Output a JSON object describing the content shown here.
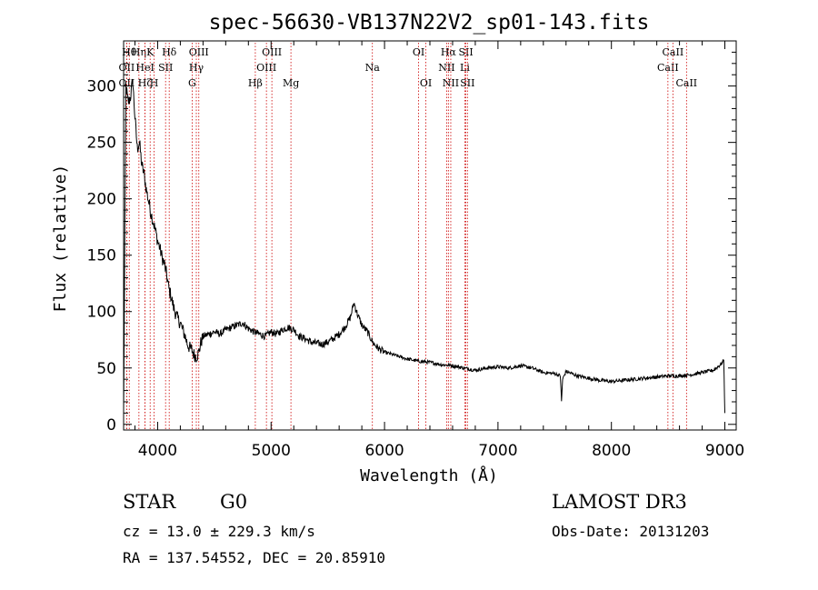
{
  "chart_data": {
    "type": "line",
    "title": "spec-56630-VB137N22V2_sp01-143.fits",
    "xlabel": "Wavelength (Å)",
    "ylabel": "Flux (relative)",
    "xlim": [
      3700,
      9100
    ],
    "ylim": [
      -5,
      340
    ],
    "xticks": [
      4000,
      5000,
      6000,
      7000,
      8000,
      9000
    ],
    "yticks": [
      0,
      50,
      100,
      150,
      200,
      250,
      300
    ],
    "series": [
      {
        "name": "flux",
        "x": [
          3700,
          3720,
          3740,
          3760,
          3780,
          3800,
          3820,
          3840,
          3860,
          3880,
          3900,
          3920,
          3940,
          3960,
          3980,
          4000,
          4020,
          4040,
          4060,
          4080,
          4100,
          4120,
          4140,
          4160,
          4180,
          4200,
          4220,
          4240,
          4260,
          4280,
          4300,
          4320,
          4340,
          4360,
          4380,
          4400,
          4450,
          4500,
          4550,
          4600,
          4650,
          4700,
          4750,
          4800,
          4850,
          4900,
          4950,
          5000,
          5050,
          5100,
          5150,
          5200,
          5250,
          5300,
          5350,
          5400,
          5450,
          5500,
          5550,
          5600,
          5650,
          5700,
          5730,
          5760,
          5800,
          5850,
          5900,
          5950,
          6000,
          6100,
          6200,
          6300,
          6400,
          6500,
          6600,
          6700,
          6800,
          6850,
          6900,
          7000,
          7100,
          7150,
          7200,
          7300,
          7400,
          7500,
          7550,
          7560,
          7570,
          7600,
          7700,
          7800,
          7900,
          8000,
          8100,
          8200,
          8300,
          8400,
          8500,
          8600,
          8700,
          8800,
          8900,
          8950,
          8980,
          8990,
          9000
        ],
        "values": [
          10,
          300,
          285,
          290,
          305,
          272,
          245,
          250,
          230,
          222,
          208,
          198,
          188,
          180,
          172,
          163,
          156,
          148,
          142,
          132,
          120,
          113,
          104,
          98,
          93,
          90,
          84,
          79,
          72,
          68,
          66,
          62,
          60,
          63,
          72,
          78,
          80,
          82,
          80,
          84,
          86,
          88,
          90,
          85,
          82,
          80,
          78,
          82,
          80,
          84,
          86,
          84,
          78,
          76,
          73,
          72,
          71,
          73,
          76,
          80,
          86,
          95,
          108,
          98,
          88,
          82,
          72,
          67,
          64,
          61,
          58,
          56,
          55,
          53,
          52,
          50,
          48,
          49,
          50,
          51,
          50,
          51,
          52,
          50,
          46,
          45,
          43,
          20,
          40,
          47,
          43,
          41,
          39,
          38,
          39,
          40,
          41,
          42,
          43,
          43,
          44,
          46,
          48,
          52,
          55,
          58,
          10
        ]
      }
    ],
    "lines": [
      {
        "label": "OII",
        "x": 3727,
        "row": 2
      },
      {
        "label": "Hθ",
        "x": 3750,
        "row": 0
      },
      {
        "label": "OII",
        "x": 3727,
        "row": 1
      },
      {
        "label": "Hη",
        "x": 3835,
        "row": 0
      },
      {
        "label": "HeI",
        "x": 3889,
        "row": 1
      },
      {
        "label": "Hζ",
        "x": 3889,
        "row": 2
      },
      {
        "label": "K",
        "x": 3934,
        "row": 0
      },
      {
        "label": "H",
        "x": 3969,
        "row": 2
      },
      {
        "label": "SII",
        "x": 4070,
        "row": 1
      },
      {
        "label": "Hδ",
        "x": 4102,
        "row": 0
      },
      {
        "label": "G",
        "x": 4304,
        "row": 2
      },
      {
        "label": "Hγ",
        "x": 4341,
        "row": 1
      },
      {
        "label": "OIII",
        "x": 4363,
        "row": 0
      },
      {
        "label": "Hβ",
        "x": 4861,
        "row": 2
      },
      {
        "label": "OIII",
        "x": 4959,
        "row": 1
      },
      {
        "label": "OIII",
        "x": 5007,
        "row": 0
      },
      {
        "label": "Mg",
        "x": 5175,
        "row": 2
      },
      {
        "label": "Na",
        "x": 5893,
        "row": 1
      },
      {
        "label": "OI",
        "x": 6300,
        "row": 0
      },
      {
        "label": "OI",
        "x": 6364,
        "row": 2
      },
      {
        "label": "NII",
        "x": 6548,
        "row": 1
      },
      {
        "label": "Hα",
        "x": 6563,
        "row": 0
      },
      {
        "label": "NII",
        "x": 6584,
        "row": 2
      },
      {
        "label": "Li",
        "x": 6708,
        "row": 1
      },
      {
        "label": "SII",
        "x": 6717,
        "row": 0
      },
      {
        "label": "SII",
        "x": 6731,
        "row": 2
      },
      {
        "label": "CaII",
        "x": 8498,
        "row": 1
      },
      {
        "label": "CaII",
        "x": 8542,
        "row": 0
      },
      {
        "label": "CaII",
        "x": 8662,
        "row": 2
      }
    ]
  },
  "info": {
    "class": "STAR",
    "subclass": "G0",
    "survey": "LAMOST DR3",
    "cz": "cz = 13.0 ± 229.3 km/s",
    "obs_date": "Obs-Date: 20131203",
    "radec": "RA = 137.54552, DEC =  20.85910"
  },
  "colors": {
    "spectrum": "#000000",
    "line_marker": "#cc0000"
  }
}
